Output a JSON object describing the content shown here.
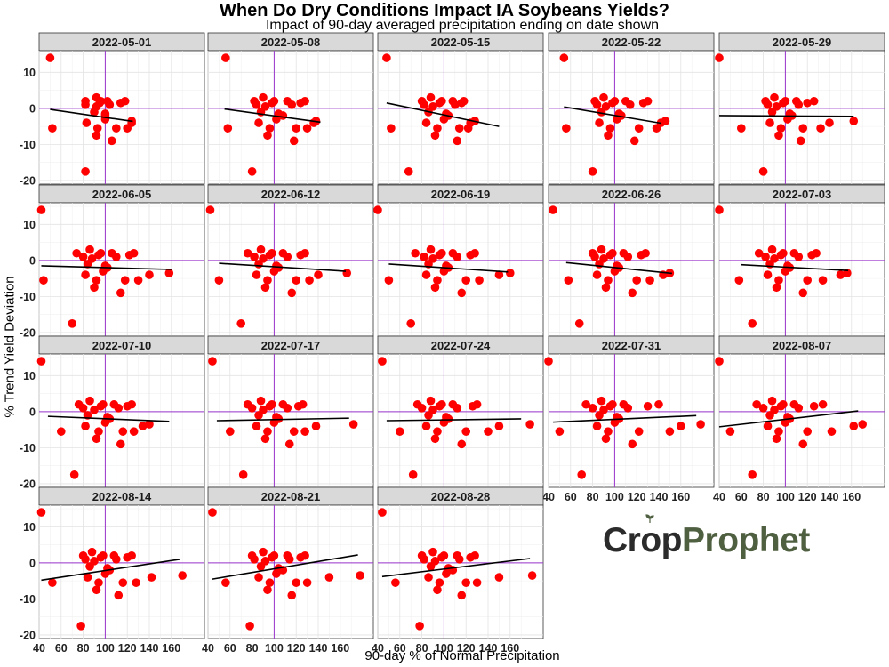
{
  "chart_data": {
    "type": "scatter",
    "title": "When Do Dry Conditions Impact IA Soybeans Yields?",
    "subtitle": "Impact of 90-day averaged precipitation ending on date shown",
    "xlabel": "90-day % of Normal Precipitation",
    "ylabel": "% Trend Yield Deviation",
    "xlim": [
      40,
      190
    ],
    "ylim": [
      -21,
      16
    ],
    "x_ticks": [
      40,
      60,
      80,
      100,
      120,
      140,
      160
    ],
    "y_ticks": [
      -20,
      -10,
      0,
      10
    ],
    "grid": true,
    "point_color": "#ff0000",
    "trend_color": "#000000",
    "reference_color": "#9933cc",
    "y_deviation": [
      14,
      -5.5,
      -17.5,
      2,
      1,
      -4,
      -1,
      3,
      0.5,
      -7.5,
      -5.5,
      1.5,
      2,
      -3,
      -1.5,
      -2,
      2,
      1,
      -9,
      -5.5,
      1.5,
      2,
      -5.5,
      -4,
      -3.5
    ],
    "panels": [
      {
        "date": "2022-05-01",
        "x": [
          50,
          52,
          82,
          82,
          82,
          83,
          90,
          92,
          92,
          92,
          93,
          95,
          96,
          100,
          100,
          100,
          102,
          104,
          106,
          110,
          114,
          118,
          120,
          124,
          124
        ],
        "trend": [
          [
            50,
            -0.3
          ],
          [
            125,
            -3.6
          ]
        ]
      },
      {
        "date": "2022-05-08",
        "x": [
          56,
          58,
          80,
          82,
          84,
          86,
          88,
          90,
          92,
          94,
          96,
          98,
          100,
          102,
          104,
          108,
          112,
          116,
          118,
          120,
          124,
          128,
          130,
          136,
          138
        ],
        "trend": [
          [
            55,
            -0.2
          ],
          [
            142,
            -3.8
          ]
        ]
      },
      {
        "date": "2022-05-15",
        "x": [
          48,
          52,
          68,
          80,
          82,
          84,
          86,
          88,
          90,
          92,
          94,
          96,
          98,
          100,
          102,
          104,
          108,
          110,
          112,
          114,
          116,
          118,
          122,
          124,
          128
        ],
        "trend": [
          [
            48,
            1.5
          ],
          [
            150,
            -5
          ]
        ]
      },
      {
        "date": "2022-05-22",
        "x": [
          54,
          56,
          80,
          82,
          84,
          86,
          88,
          90,
          92,
          94,
          96,
          98,
          100,
          102,
          104,
          106,
          110,
          114,
          118,
          122,
          126,
          130,
          138,
          142,
          146
        ],
        "trend": [
          [
            54,
            0.4
          ],
          [
            142,
            -4.1
          ]
        ]
      },
      {
        "date": "2022-05-29",
        "x": [
          40,
          60,
          80,
          82,
          84,
          86,
          88,
          90,
          92,
          94,
          96,
          98,
          100,
          102,
          104,
          106,
          110,
          112,
          114,
          116,
          120,
          126,
          132,
          140,
          162
        ],
        "trend": [
          [
            40,
            -2
          ],
          [
            162,
            -2.2
          ]
        ]
      },
      {
        "date": "2022-06-05",
        "x": [
          42,
          44,
          70,
          74,
          80,
          82,
          84,
          86,
          88,
          90,
          92,
          94,
          96,
          98,
          100,
          102,
          106,
          110,
          114,
          118,
          122,
          126,
          130,
          140,
          158
        ],
        "trend": [
          [
            42,
            -1.5
          ],
          [
            160,
            -2.5
          ]
        ]
      },
      {
        "date": "2022-06-12",
        "x": [
          42,
          50,
          70,
          76,
          82,
          84,
          86,
          88,
          90,
          92,
          94,
          96,
          98,
          100,
          102,
          104,
          108,
          112,
          116,
          120,
          124,
          128,
          132,
          140,
          166
        ],
        "trend": [
          [
            50,
            -0.8
          ],
          [
            165,
            -3
          ]
        ]
      },
      {
        "date": "2022-06-19",
        "x": [
          40,
          50,
          70,
          74,
          82,
          84,
          86,
          88,
          90,
          92,
          94,
          96,
          98,
          100,
          102,
          104,
          108,
          112,
          116,
          120,
          124,
          128,
          132,
          150,
          160
        ],
        "trend": [
          [
            50,
            -1
          ],
          [
            158,
            -3.2
          ]
        ]
      },
      {
        "date": "2022-06-26",
        "x": [
          44,
          58,
          68,
          80,
          82,
          84,
          86,
          88,
          90,
          92,
          94,
          96,
          98,
          100,
          102,
          104,
          108,
          112,
          116,
          120,
          124,
          128,
          132,
          144,
          150
        ],
        "trend": [
          [
            56,
            -0.6
          ],
          [
            152,
            -3.6
          ]
        ]
      },
      {
        "date": "2022-07-03",
        "x": [
          40,
          58,
          70,
          76,
          82,
          84,
          86,
          88,
          90,
          92,
          94,
          96,
          98,
          100,
          102,
          104,
          108,
          112,
          116,
          120,
          124,
          128,
          134,
          150,
          156
        ],
        "trend": [
          [
            60,
            -1.2
          ],
          [
            157,
            -2.8
          ]
        ]
      },
      {
        "date": "2022-07-10",
        "x": [
          42,
          60,
          72,
          76,
          80,
          82,
          84,
          86,
          90,
          92,
          94,
          96,
          98,
          100,
          102,
          104,
          108,
          112,
          114,
          116,
          120,
          124,
          126,
          134,
          140
        ],
        "trend": [
          [
            48,
            -1.3
          ],
          [
            158,
            -2.7
          ]
        ]
      },
      {
        "date": "2022-07-17",
        "x": [
          44,
          60,
          72,
          76,
          80,
          84,
          86,
          88,
          90,
          92,
          94,
          96,
          98,
          100,
          102,
          104,
          108,
          112,
          114,
          118,
          122,
          126,
          128,
          138,
          172
        ],
        "trend": [
          [
            48,
            -2.5
          ],
          [
            168,
            -1.8
          ]
        ]
      },
      {
        "date": "2022-07-24",
        "x": [
          44,
          60,
          72,
          76,
          80,
          84,
          86,
          88,
          90,
          92,
          94,
          96,
          98,
          100,
          102,
          104,
          108,
          112,
          116,
          120,
          126,
          130,
          140,
          150,
          178
        ],
        "trend": [
          [
            48,
            -2.5
          ],
          [
            170,
            -2
          ]
        ]
      },
      {
        "date": "2022-07-31",
        "x": [
          40,
          50,
          70,
          74,
          80,
          84,
          86,
          88,
          90,
          92,
          94,
          96,
          98,
          100,
          102,
          104,
          108,
          112,
          116,
          122,
          130,
          140,
          150,
          160,
          178
        ],
        "trend": [
          [
            44,
            -2.9
          ],
          [
            174,
            -1.1
          ]
        ]
      },
      {
        "date": "2022-08-07",
        "x": [
          40,
          50,
          70,
          74,
          80,
          84,
          86,
          88,
          90,
          92,
          94,
          96,
          98,
          100,
          102,
          104,
          108,
          112,
          116,
          120,
          126,
          134,
          142,
          162,
          170
        ],
        "trend": [
          [
            40,
            -4.2
          ],
          [
            166,
            0.2
          ]
        ]
      },
      {
        "date": "2022-08-14",
        "x": [
          42,
          52,
          78,
          80,
          82,
          84,
          86,
          88,
          90,
          92,
          94,
          96,
          98,
          100,
          102,
          104,
          108,
          110,
          112,
          116,
          120,
          124,
          128,
          142,
          170
        ],
        "trend": [
          [
            42,
            -4.8
          ],
          [
            168,
            1
          ]
        ]
      },
      {
        "date": "2022-08-21",
        "x": [
          44,
          56,
          78,
          80,
          82,
          86,
          88,
          90,
          92,
          94,
          96,
          98,
          100,
          102,
          104,
          108,
          112,
          114,
          116,
          120,
          124,
          128,
          130,
          150,
          178
        ],
        "trend": [
          [
            44,
            -4.5
          ],
          [
            176,
            2.2
          ]
        ]
      },
      {
        "date": "2022-08-28",
        "x": [
          44,
          56,
          78,
          80,
          82,
          86,
          88,
          90,
          92,
          94,
          96,
          98,
          100,
          102,
          104,
          108,
          112,
          114,
          116,
          120,
          124,
          128,
          130,
          150,
          180
        ],
        "trend": [
          [
            44,
            -3.8
          ],
          [
            178,
            1.2
          ]
        ]
      }
    ]
  },
  "logo": {
    "part1": "Cr",
    "o": "o",
    "part2": "p",
    "part3": "Prophet"
  }
}
